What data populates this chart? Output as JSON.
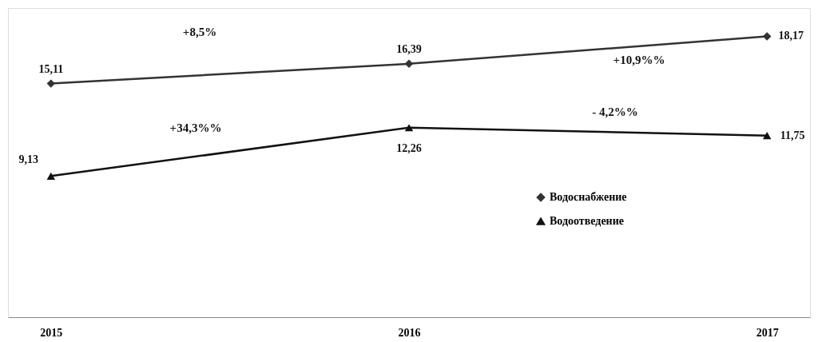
{
  "chart_data": {
    "type": "line",
    "categories": [
      "2015",
      "2016",
      "2017"
    ],
    "series": [
      {
        "name": "Водоснабжение",
        "color": "#333333",
        "marker": "diamond",
        "values": [
          15.11,
          16.39,
          18.17
        ],
        "value_labels": [
          "15,11",
          "16,39",
          "18,17"
        ]
      },
      {
        "name": "Водоотведение",
        "color": "#111111",
        "marker": "triangle",
        "values": [
          9.13,
          12.26,
          11.75
        ],
        "value_labels": [
          "9,13",
          "12,26",
          "11,75"
        ]
      }
    ],
    "annotations": [
      "+8,5%",
      "+10,9%%",
      "+34,3%%",
      "- 4,2%%"
    ],
    "legend": "right",
    "grid": false,
    "tick_labels": "x"
  }
}
